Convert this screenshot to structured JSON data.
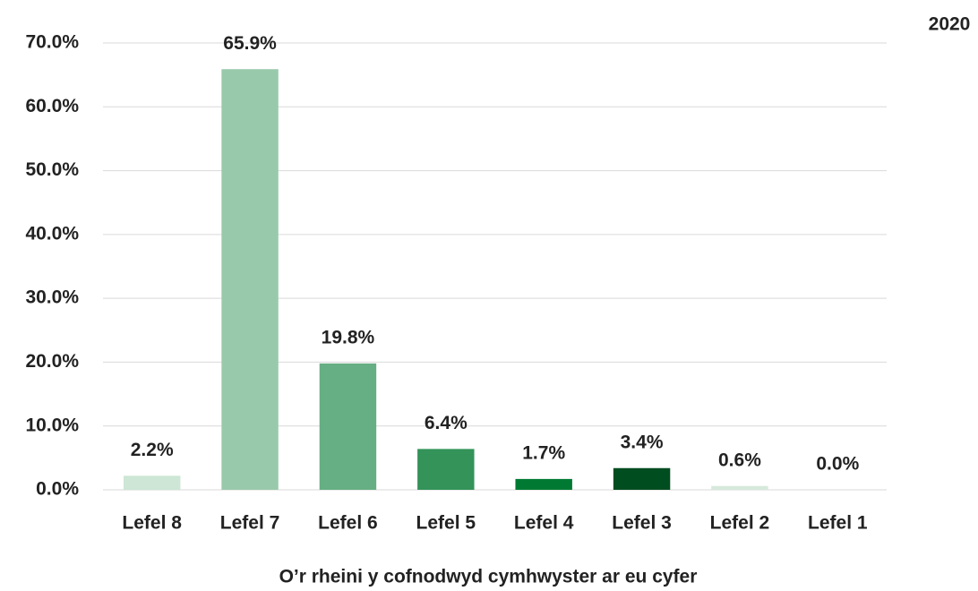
{
  "chart_data": {
    "type": "bar",
    "x_label": "O’r rheini y cofnodwyd cymhwyster ar eu cyfer",
    "categories": [
      "Lefel 8",
      "Lefel 7",
      "Lefel 6",
      "Lefel 5",
      "Lefel 4",
      "Lefel 3",
      "Lefel 2",
      "Lefel 1"
    ],
    "series": [
      {
        "name": "2020",
        "values": [
          2.2,
          65.9,
          19.8,
          6.4,
          1.7,
          3.4,
          0.6,
          0.0
        ],
        "value_labels": [
          "2.2%",
          "65.9%",
          "19.8%",
          "6.4%",
          "1.7%",
          "3.4%",
          "0.6%",
          "0.0%"
        ],
        "colors": [
          "#cde6d5",
          "#99c9ab",
          "#66ae83",
          "#339359",
          "#007a33",
          "#004d20",
          "#d6e9dc",
          "#cde6d5"
        ]
      }
    ],
    "ylim": [
      0,
      70
    ],
    "yticks": [
      {
        "value": 0,
        "label": "0.0%"
      },
      {
        "value": 10,
        "label": "10.0%"
      },
      {
        "value": 20,
        "label": "20.0%"
      },
      {
        "value": 30,
        "label": "30.0%"
      },
      {
        "value": 40,
        "label": "40.0%"
      },
      {
        "value": 50,
        "label": "50.0%"
      },
      {
        "value": 60,
        "label": "60.0%"
      },
      {
        "value": 70,
        "label": "70.0%"
      }
    ],
    "grid": true,
    "legend": "top-right"
  }
}
